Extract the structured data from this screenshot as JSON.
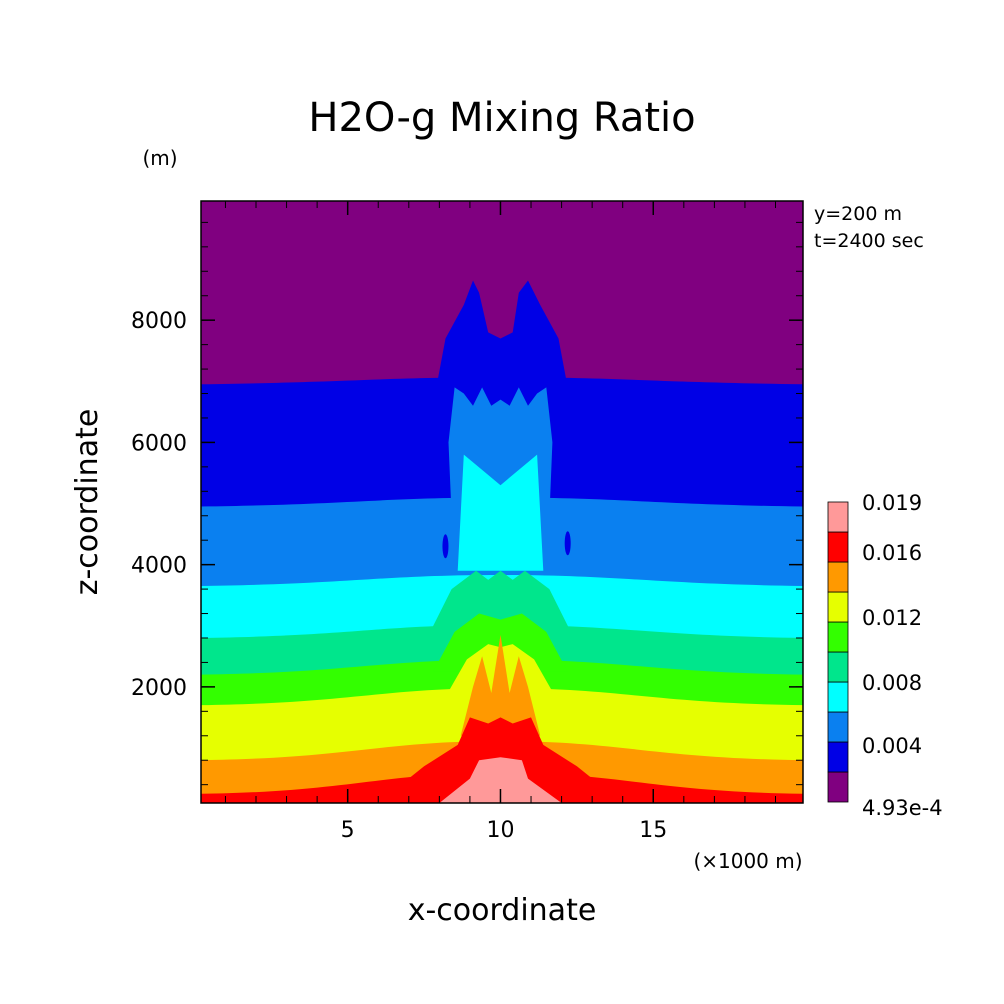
{
  "chart_data": {
    "type": "contour",
    "title": "H2O-g Mixing Ratio",
    "xlabel": "x-coordinate",
    "ylabel": "z-coordinate",
    "x_unit": "(×1000 m)",
    "y_unit": "(m)",
    "annotations": [
      "y=200 m",
      "t=2400 sec"
    ],
    "x_ticks": [
      "5",
      "10",
      "15"
    ],
    "y_ticks": [
      "2000",
      "4000",
      "6000",
      "8000"
    ],
    "xlim": [
      0.2,
      19.9
    ],
    "ylim": [
      100,
      9950
    ],
    "colorbar": {
      "labels": [
        "0.019",
        "0.016",
        "0.012",
        "0.008",
        "0.004",
        "4.93e-4"
      ],
      "colors": [
        "#800080",
        "#0000e6",
        "#0a80f0",
        "#00ffff",
        "#00e68c",
        "#33ff00",
        "#e6ff00",
        "#ff9900",
        "#ff0000",
        "#ff9999"
      ]
    },
    "levels_plain": [
      {
        "color": "#0000e6",
        "z": 7000
      },
      {
        "color": "#0a80f0",
        "z": 5000
      },
      {
        "color": "#00ffff",
        "z": 3700
      },
      {
        "color": "#00e68c",
        "z": 2850
      },
      {
        "color": "#33ff00",
        "z": 2250
      },
      {
        "color": "#e6ff00",
        "z": 1750
      },
      {
        "color": "#ff9900",
        "z": 850
      },
      {
        "color": "#ff0000",
        "z": 300
      }
    ],
    "plume": {
      "center_x": 10,
      "core_color": "#ff9999",
      "core_top_z": 800,
      "core_x_range": [
        9.0,
        10.9
      ]
    }
  }
}
